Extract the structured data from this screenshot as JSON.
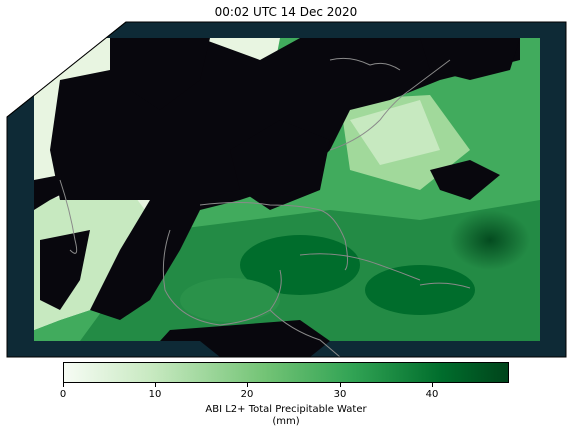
{
  "title": "00:02 UTC 14 Dec 2020",
  "colors": {
    "ocean_background": "#0e2a36",
    "no_data": "#08070d",
    "colormap": [
      "#f7fcf5",
      "#c7e9c0",
      "#74c476",
      "#31a354",
      "#006d2c",
      "#00441b"
    ],
    "coastline": "#8a8a8a"
  },
  "colorbar": {
    "min": 0,
    "max": 48,
    "ticks": [
      "0",
      "10",
      "20",
      "30",
      "40"
    ],
    "label_line1": "ABI L2+ Total Precipitable Water",
    "label_line2": "(mm)"
  }
}
